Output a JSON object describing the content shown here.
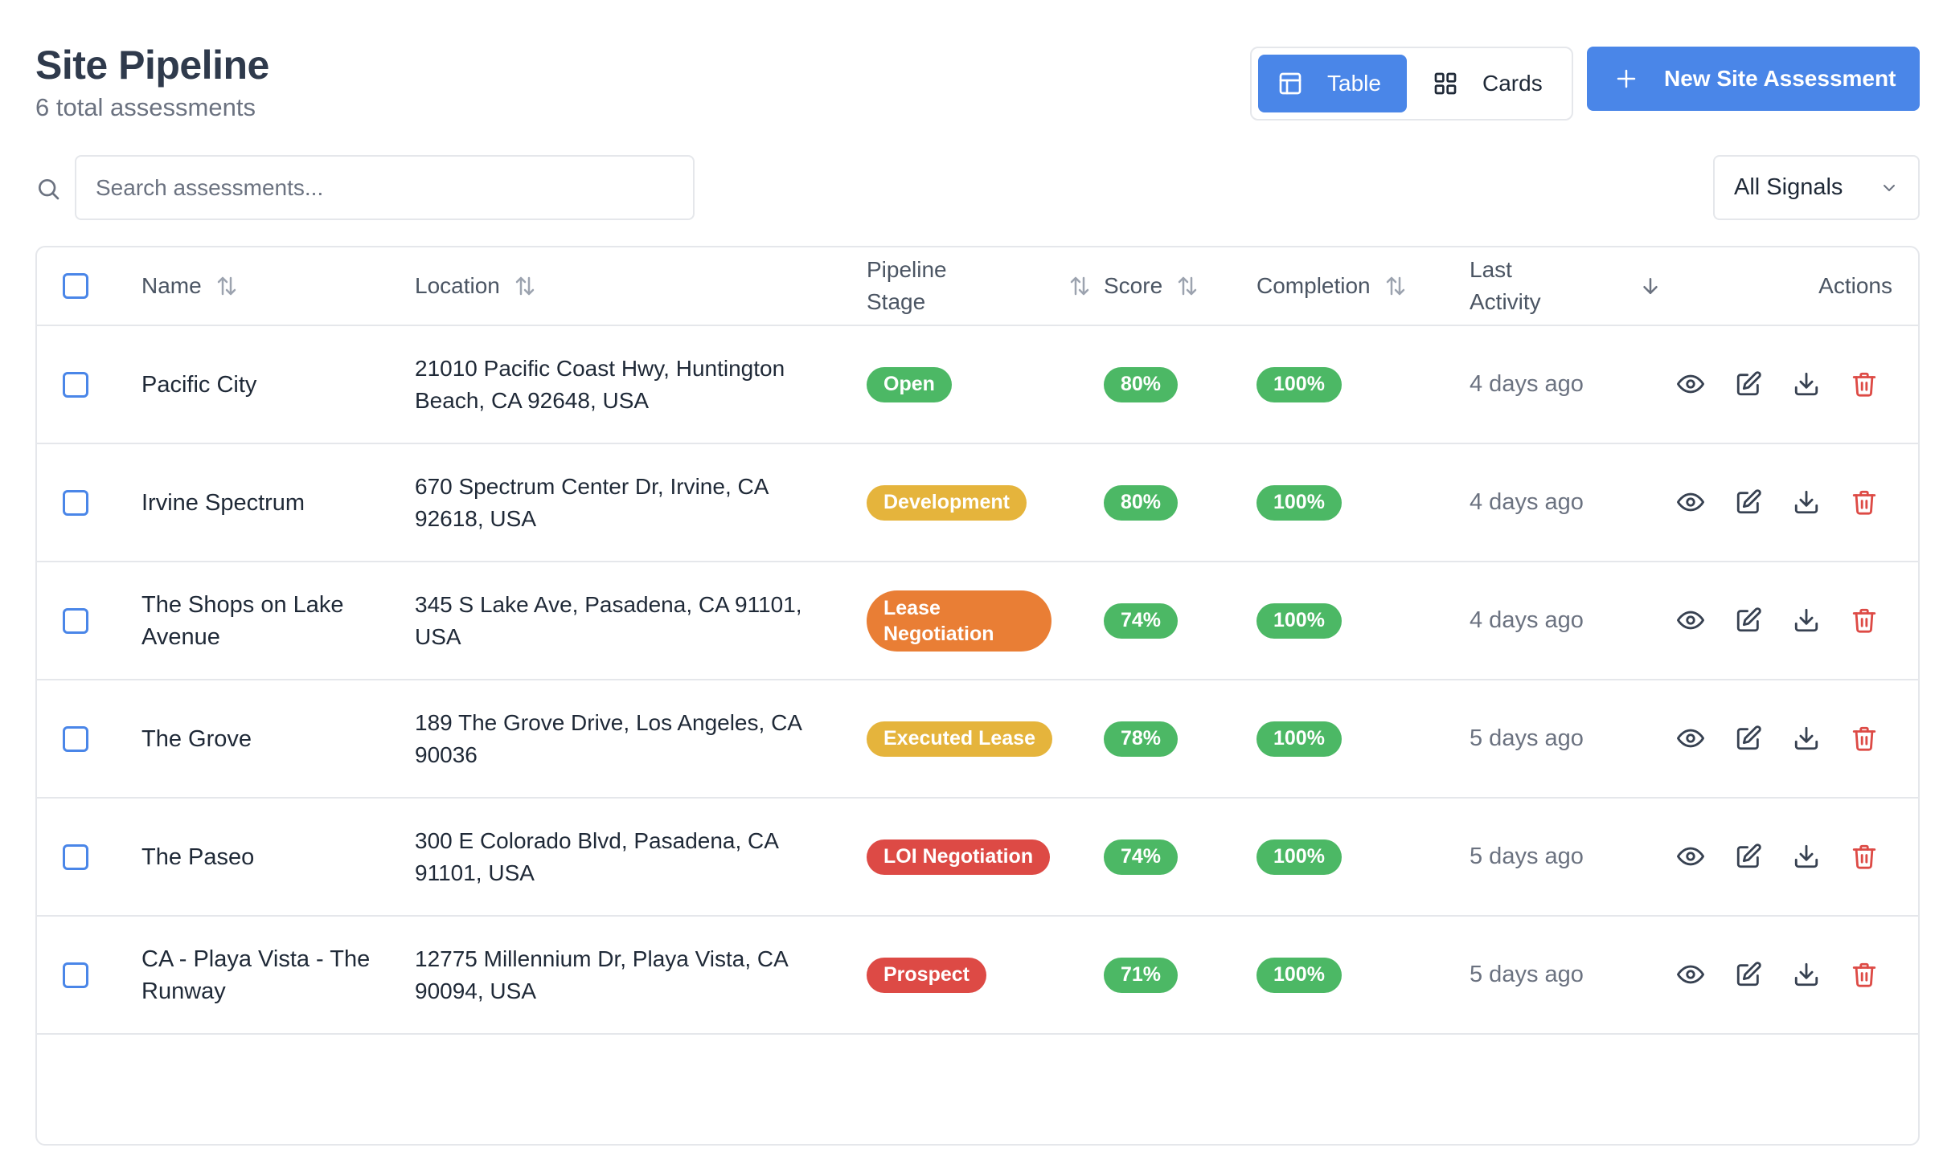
{
  "header": {
    "title": "Site Pipeline",
    "subtitle": "6 total assessments"
  },
  "view_toggle": {
    "table_label": "Table",
    "cards_label": "Cards",
    "active": "Table"
  },
  "new_button": {
    "label": "New Site Assessment"
  },
  "search": {
    "placeholder": "Search assessments...",
    "value": ""
  },
  "signal_filter": {
    "selected": "All Signals"
  },
  "table": {
    "columns": {
      "name": "Name",
      "location": "Location",
      "stage": "Pipeline Stage",
      "score": "Score",
      "completion": "Completion",
      "last_activity": "Last Activity",
      "actions": "Actions"
    },
    "rows": [
      {
        "name": "Pacific City",
        "location": "21010 Pacific Coast Hwy, Huntington Beach, CA 92648, USA",
        "stage": "Open",
        "stage_color": "#4cb865",
        "score": "80%",
        "completion": "100%",
        "last_activity": "4 days ago"
      },
      {
        "name": "Irvine Spectrum",
        "location": "670 Spectrum Center Dr, Irvine, CA 92618, USA",
        "stage": "Development",
        "stage_color": "#e5b43c",
        "score": "80%",
        "completion": "100%",
        "last_activity": "4 days ago"
      },
      {
        "name": "The Shops on Lake Avenue",
        "location": "345 S Lake Ave, Pasadena, CA 91101, USA",
        "stage": "Lease Negotiation",
        "stage_color": "#e97e35",
        "score": "74%",
        "completion": "100%",
        "last_activity": "4 days ago"
      },
      {
        "name": "The Grove",
        "location": "189 The Grove Drive, Los Angeles, CA 90036",
        "stage": "Executed Lease",
        "stage_color": "#e5b43c",
        "score": "78%",
        "completion": "100%",
        "last_activity": "5 days ago"
      },
      {
        "name": "The Paseo",
        "location": "300 E Colorado Blvd, Pasadena, CA 91101, USA",
        "stage": "LOI Negotiation",
        "stage_color": "#dd4a45",
        "score": "74%",
        "completion": "100%",
        "last_activity": "5 days ago"
      },
      {
        "name": "CA - Playa Vista - The Runway",
        "location": "12775 Millennium Dr, Playa Vista, CA 90094, USA",
        "stage": "Prospect",
        "stage_color": "#dd4a45",
        "score": "71%",
        "completion": "100%",
        "last_activity": "5 days ago"
      }
    ]
  },
  "colors": {
    "accent": "#4a86e8",
    "success": "#4cb865",
    "warning": "#e5b43c",
    "orange": "#e97e35",
    "danger": "#dd4a45"
  },
  "icons": [
    "search-icon",
    "table-icon",
    "grid-icon",
    "plus-icon",
    "chevron-down-icon",
    "sort-icon",
    "arrow-down-icon",
    "eye-icon",
    "edit-icon",
    "download-icon",
    "trash-icon"
  ]
}
